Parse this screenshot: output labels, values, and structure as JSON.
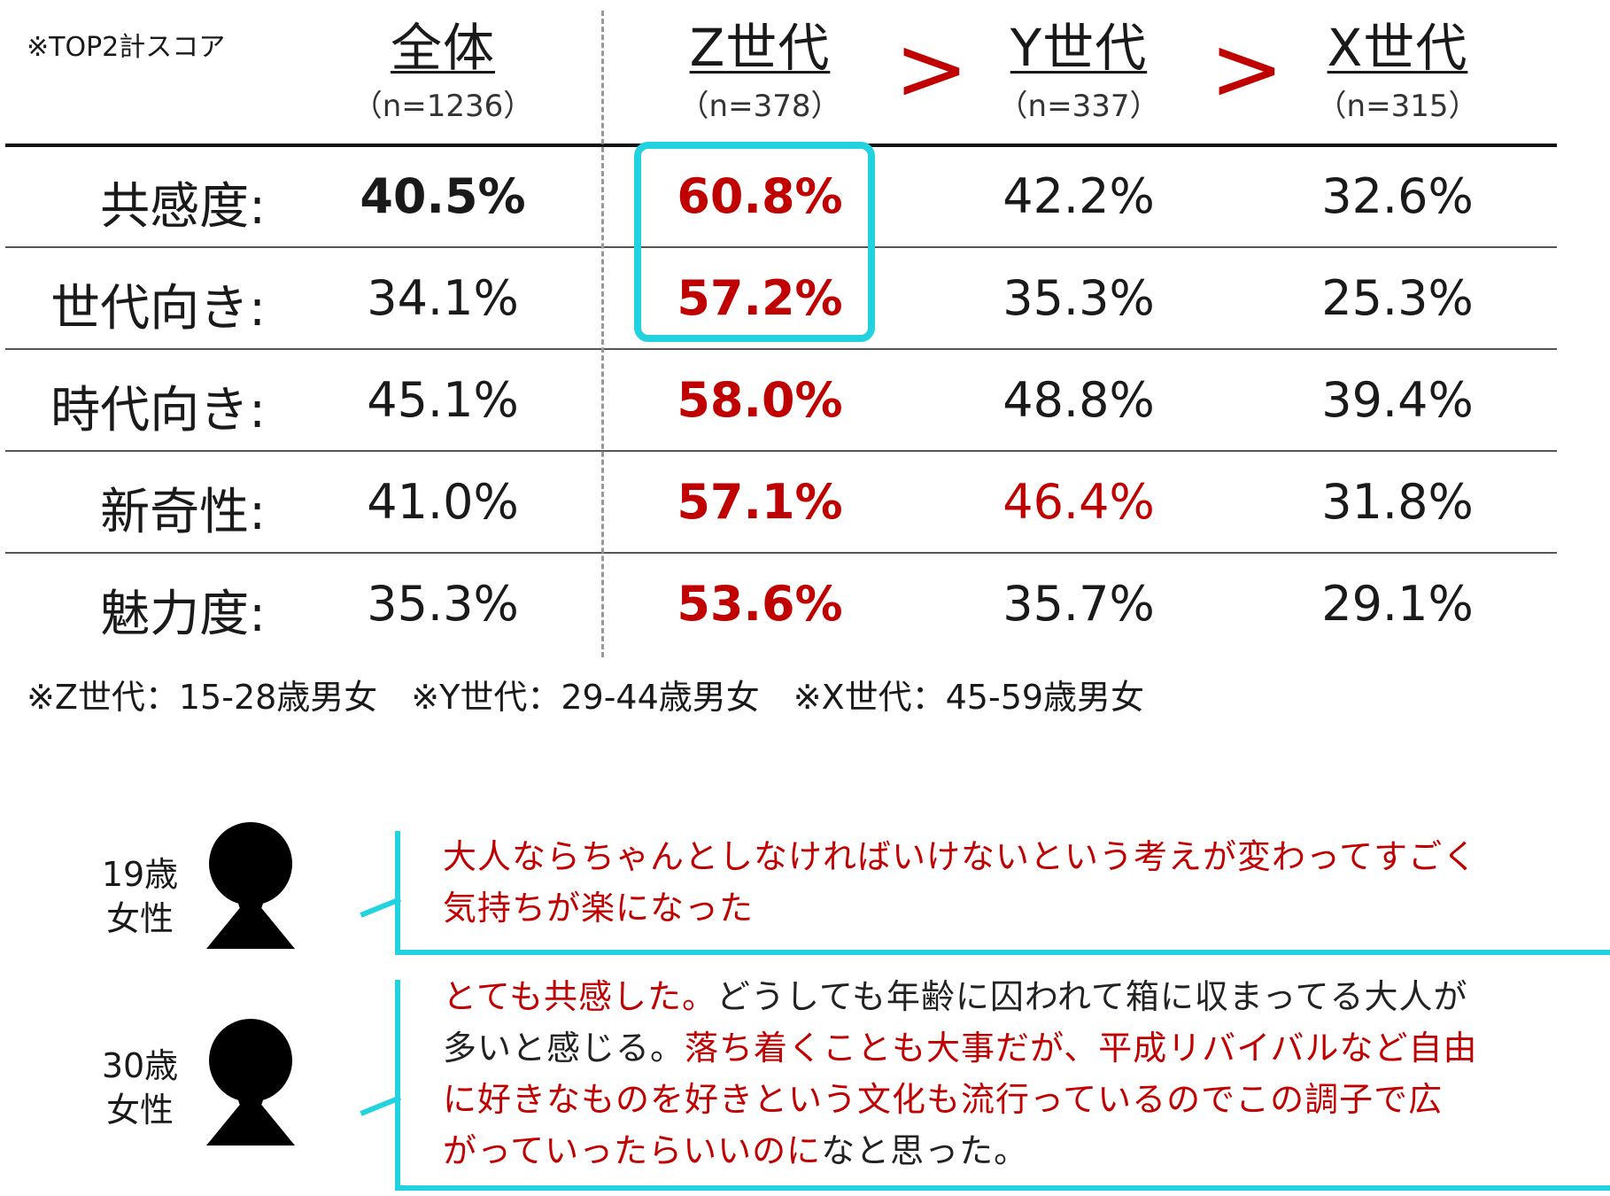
{
  "chart_data": {
    "type": "table",
    "note": "※TOP2計スコア",
    "columns": [
      {
        "name": "全体",
        "n": "（n=1236）"
      },
      {
        "name": "Z世代",
        "n": "（n=378）"
      },
      {
        "name": "Y世代",
        "n": "（n=337）"
      },
      {
        "name": "X世代",
        "n": "（n=315）"
      }
    ],
    "comparators": [
      ">",
      ">"
    ],
    "rows": [
      {
        "label": "共感度:",
        "values": [
          "40.5%",
          "60.8%",
          "42.2%",
          "32.6%"
        ]
      },
      {
        "label": "世代向き:",
        "values": [
          "34.1%",
          "57.2%",
          "35.3%",
          "25.3%"
        ]
      },
      {
        "label": "時代向き:",
        "values": [
          "45.1%",
          "58.0%",
          "48.8%",
          "39.4%"
        ]
      },
      {
        "label": "新奇性:",
        "values": [
          "41.0%",
          "57.1%",
          "46.4%",
          "31.8%"
        ]
      },
      {
        "label": "魅力度:",
        "values": [
          "35.3%",
          "53.6%",
          "35.7%",
          "29.1%"
        ]
      }
    ],
    "footnote": "※Z世代：15-28歳男女　※Y世代：29-44歳男女　※X世代：45-59歳男女"
  },
  "colors": {
    "highlight_red": "#c00000",
    "accent_cyan": "#22d3df"
  },
  "comments": [
    {
      "person": {
        "age": "19歳",
        "gender": "女性"
      },
      "segments": [
        {
          "text": "大人ならちゃんとしなければいけないという考えが変わってすごく",
          "emphasis": true
        },
        {
          "text": "気持ちが楽になった",
          "emphasis": true
        }
      ]
    },
    {
      "person": {
        "age": "30歳",
        "gender": "女性"
      },
      "segments": [
        {
          "text": "とても共感した。",
          "emphasis": true
        },
        {
          "text": "どうしても年齢に囚われて箱に収まってる大人が",
          "emphasis": false
        },
        {
          "text": "多いと感じる。",
          "emphasis": false
        },
        {
          "text": "落ち着くことも大事だが、平成リバイバルなど自由",
          "emphasis": true
        },
        {
          "text": "に好きなものを好きという文化も流行っているのでこの調子で広",
          "emphasis": true
        },
        {
          "text": "がっていったらいいのに",
          "emphasis": true
        },
        {
          "text": "なと思った。",
          "emphasis": false
        }
      ]
    }
  ]
}
